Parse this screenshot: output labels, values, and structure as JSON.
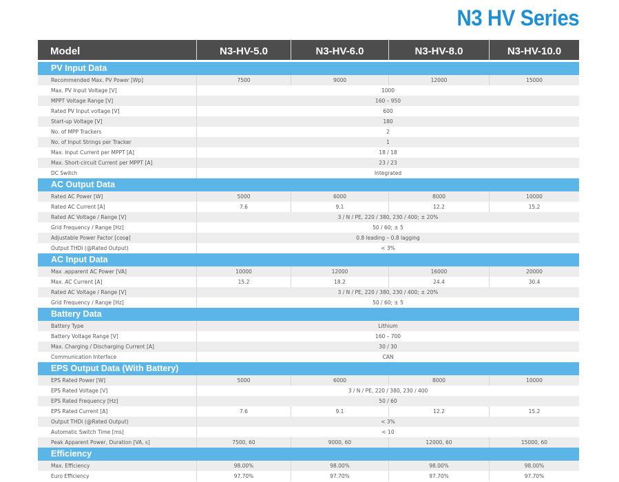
{
  "title": "N3 HV Series",
  "header": {
    "model_label": "Model",
    "models": [
      "N3-HV-5.0",
      "N3-HV-6.0",
      "N3-HV-8.0",
      "N3-HV-10.0"
    ]
  },
  "colors": {
    "title": "#1e8fd3",
    "header_bg": "#4d4d4d",
    "section_bg": "#5bb5e6",
    "row_alt": "#ededed"
  },
  "sections": [
    {
      "title": "PV Input Data",
      "rows": [
        {
          "label": "Recommended Max. PV Power [Wp]",
          "values": [
            "7500",
            "9000",
            "12000",
            "15000"
          ]
        },
        {
          "label": "Max. PV Input Voltage [V]",
          "values": [
            "1000"
          ]
        },
        {
          "label": "MPPT Voltage Range [V]",
          "values": [
            "160 – 950"
          ]
        },
        {
          "label": "Rated PV Input voltage [V]",
          "values": [
            "600"
          ]
        },
        {
          "label": "Start-up Voltage [V]",
          "values": [
            "180"
          ]
        },
        {
          "label": "No. of MPP Trackers",
          "values": [
            "2"
          ]
        },
        {
          "label": "No. of Input Strings per  Tracker",
          "values": [
            "1"
          ]
        },
        {
          "label": "Max. Input Current per MPPT [A]",
          "values": [
            "18 / 18"
          ]
        },
        {
          "label": "Max. Short-circuit Current per MPPT [A]",
          "values": [
            "23 / 23"
          ]
        },
        {
          "label": "DC Switch",
          "values": [
            "Integrated"
          ]
        }
      ]
    },
    {
      "title": "AC Output Data",
      "rows": [
        {
          "label": "Rated AC Power [W]",
          "values": [
            "5000",
            "6000",
            "8000",
            "10000"
          ]
        },
        {
          "label": "Rated AC Current [A]",
          "values": [
            "7.6",
            "9.1",
            "12.2",
            "15.2"
          ]
        },
        {
          "label": "Rated AC Voltage / Range [V]",
          "values": [
            "3 / N / PE, 220 / 380, 230 / 400; ± 20%"
          ]
        },
        {
          "label": "Grid Frequency / Range [Hz]",
          "values": [
            "50 / 60; ± 5"
          ]
        },
        {
          "label": "Adjustable Power Factor [cosφ]",
          "values": [
            "0.8 leading – 0.8 lagging"
          ]
        },
        {
          "label": "Output THDi (@Rated Output)",
          "values": [
            "< 3%"
          ]
        }
      ]
    },
    {
      "title": "AC Input Data",
      "rows": [
        {
          "label": "Max .apparent AC Power [VA]",
          "values": [
            "10000",
            "12000",
            "16000",
            "20000"
          ]
        },
        {
          "label": "Max. AC Current [A]",
          "values": [
            "15.2",
            "18.2",
            "24.4",
            "30.4"
          ]
        },
        {
          "label": "Rated AC Voltage / Range [V]",
          "values": [
            "3 / N / PE, 220 / 380, 230 / 400; ± 20%"
          ]
        },
        {
          "label": "Grid Frequency / Range [Hz]",
          "values": [
            "50 / 60; ± 5"
          ]
        }
      ]
    },
    {
      "title": "Battery Data",
      "rows": [
        {
          "label": "Battery Type",
          "values": [
            "Lithium"
          ]
        },
        {
          "label": "Battery Voltage Range [V]",
          "values": [
            "160 – 700"
          ]
        },
        {
          "label": "Max. Charging / Discharging Current [A]",
          "values": [
            "30 / 30"
          ]
        },
        {
          "label": "Communication Interface",
          "values": [
            "CAN"
          ]
        }
      ]
    },
    {
      "title": "EPS Output Data (With Battery)",
      "rows": [
        {
          "label": "EPS Rated Power [W]",
          "values": [
            "5000",
            "6000",
            "8000",
            "10000"
          ]
        },
        {
          "label": "EPS Rated Voltage [V]",
          "values": [
            "3 / N / PE, 220 / 380, 230 / 400"
          ]
        },
        {
          "label": "EPS Rated Frequency [Hz]",
          "values": [
            "50 / 60"
          ]
        },
        {
          "label": "EPS Rated Current [A]",
          "values": [
            "7.6",
            "9.1",
            "12.2",
            "15.2"
          ]
        },
        {
          "label": "Output THDi (@Rated Output)",
          "values": [
            "< 3%"
          ]
        },
        {
          "label": "Automatic Switch Time [ms]",
          "values": [
            "< 10"
          ]
        },
        {
          "label": "Peak Apparent Power, Duration [VA, s]",
          "values": [
            "7500, 60",
            "9000, 60",
            "12000, 60",
            "15000, 60"
          ]
        }
      ]
    },
    {
      "title": "Efficiency",
      "rows": [
        {
          "label": "Max. Efficiency",
          "values": [
            "98.00%",
            "98.00%",
            "98.00%",
            "98.00%"
          ]
        },
        {
          "label": "Euro Efficiency",
          "values": [
            "97.70%",
            "97.70%",
            "97.70%",
            "97.70%"
          ]
        }
      ]
    }
  ]
}
